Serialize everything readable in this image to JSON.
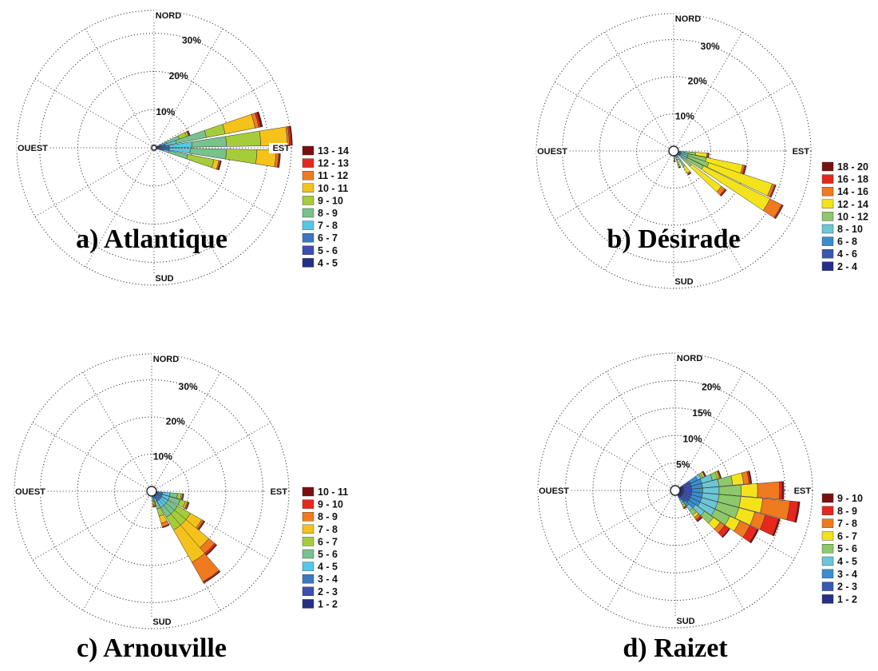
{
  "chart_data": [
    {
      "type": "windrose",
      "title": "a) Atlantique",
      "directions": [
        "NORD",
        "EST",
        "SUD",
        "OUEST"
      ],
      "ring_values": [
        10,
        20,
        30
      ],
      "ring_labels": [
        "10%",
        "20%",
        "30%"
      ],
      "rmax": 36,
      "legend": [
        "13 - 14",
        "12 - 13",
        "11 - 12",
        "10 - 11",
        "9 - 10",
        "8 - 9",
        "7 - 8",
        "6 - 7",
        "5 - 6",
        "4 - 5"
      ],
      "colors": [
        "#7a0f0f",
        "#e8271c",
        "#f07a1e",
        "#f4c21b",
        "#a5cd39",
        "#78c28c",
        "#55c7e8",
        "#3a77c4",
        "#3c4fb2",
        "#252f86"
      ],
      "sectors": [
        {
          "dir": 67.5,
          "cum": [
            0.5,
            1.0,
            2.0,
            3.5,
            7.0,
            9.0,
            9.5,
            9.7,
            9.8,
            10.0
          ]
        },
        {
          "dir": 75,
          "cum": [
            0.5,
            1.5,
            3.0,
            6.0,
            14.0,
            19.0,
            27.0,
            28.0,
            28.5,
            29.0
          ]
        },
        {
          "dir": 85,
          "cum": [
            0.5,
            1.5,
            4.0,
            10.0,
            19.0,
            28.0,
            35.0,
            35.5,
            36.0,
            36.3
          ]
        },
        {
          "dir": 95,
          "cum": [
            0.5,
            1.5,
            4.0,
            9.5,
            19.0,
            27.0,
            32.0,
            32.7,
            33.0,
            33.2
          ]
        },
        {
          "dir": 105,
          "cum": [
            0.5,
            1.0,
            2.5,
            4.0,
            9.0,
            16.0,
            17.3,
            17.6,
            17.8,
            18.0
          ]
        }
      ]
    },
    {
      "type": "windrose",
      "title": "b) Désirade",
      "directions": [
        "NORD",
        "EST",
        "SUD",
        "OUEST"
      ],
      "ring_values": [
        10,
        20,
        30
      ],
      "ring_labels": [
        "10%",
        "20%",
        "30%"
      ],
      "rmax": 37,
      "legend": [
        "18 - 20",
        "16 - 18",
        "14 - 16",
        "12 - 14",
        "10 - 12",
        "8 - 10",
        "6 - 8",
        "4 - 6",
        "2 - 4"
      ],
      "colors": [
        "#7a0f0f",
        "#e8271c",
        "#f07a1e",
        "#f4e31b",
        "#8dc86a",
        "#6cc6d6",
        "#3a8ed0",
        "#3a57b5",
        "#252f86"
      ],
      "sectors": [
        {
          "dir": 97,
          "cum": [
            0.5,
            1.0,
            2.0,
            3.0,
            6.0,
            9.0,
            9.3,
            9.5,
            9.6
          ]
        },
        {
          "dir": 105,
          "cum": [
            0.5,
            1.0,
            2.0,
            4.0,
            9.0,
            19.0,
            19.5,
            19.8,
            20.0
          ]
        },
        {
          "dir": 112,
          "cum": [
            0.5,
            1.0,
            2.0,
            4.0,
            10.0,
            28.0,
            28.7,
            29.0,
            29.1
          ]
        },
        {
          "dir": 120,
          "cum": [
            0.5,
            1.0,
            2.0,
            4.0,
            9.0,
            29.0,
            32.5,
            32.8,
            33.0
          ]
        },
        {
          "dir": 130,
          "cum": [
            0.5,
            1.0,
            2.0,
            3.0,
            6.0,
            16.0,
            17.2,
            17.5,
            17.7
          ]
        },
        {
          "dir": 145,
          "cum": [
            0.5,
            1.0,
            2.0,
            3.0,
            5.0,
            7.0,
            7.3,
            7.5,
            7.6
          ]
        },
        {
          "dir": 160,
          "cum": [
            0.5,
            1.0,
            1.5,
            2.5,
            4.0,
            4.5,
            4.6,
            4.7,
            4.8
          ]
        },
        {
          "dir": 175,
          "cum": [
            0.5,
            1.0,
            1.5,
            2.0,
            2.5,
            2.8,
            2.9,
            2.95,
            3.0
          ]
        }
      ]
    },
    {
      "type": "windrose",
      "title": "c) Arnouville",
      "directions": [
        "NORD",
        "EST",
        "SUD",
        "OUEST"
      ],
      "ring_values": [
        10,
        20,
        30
      ],
      "ring_labels": [
        "10%",
        "20%",
        "30%"
      ],
      "rmax": 37,
      "legend": [
        "10 - 11",
        "9 - 10",
        "8 - 9",
        "7 - 8",
        "6 - 7",
        "5 - 6",
        "4 - 5",
        "3 - 4",
        "2 - 3",
        "1 - 2"
      ],
      "colors": [
        "#7a0f0f",
        "#e8271c",
        "#f07a1e",
        "#f4c21b",
        "#a5cd39",
        "#78c28c",
        "#55c7e8",
        "#3a77c4",
        "#3c4fb2",
        "#252f86"
      ],
      "sectors": [
        {
          "dir": 100,
          "cum": [
            0.5,
            1.5,
            3.0,
            5.0,
            7.0,
            8.0,
            8.3,
            8.5,
            8.6,
            8.7
          ]
        },
        {
          "dir": 112,
          "cum": [
            0.5,
            1.5,
            3.0,
            5.0,
            8.0,
            9.5,
            10.0,
            10.3,
            10.5,
            10.6
          ]
        },
        {
          "dir": 125,
          "cum": [
            0.5,
            1.5,
            3.0,
            5.0,
            8.0,
            12.0,
            15.5,
            16.0,
            16.3,
            16.5
          ]
        },
        {
          "dir": 135,
          "cum": [
            0.5,
            1.5,
            3.0,
            5.0,
            8.0,
            12.0,
            20.0,
            22.0,
            22.5,
            22.8
          ]
        },
        {
          "dir": 145,
          "cum": [
            0.5,
            1.5,
            3.0,
            5.0,
            8.0,
            12.0,
            22.0,
            28.0,
            28.3,
            28.5
          ]
        },
        {
          "dir": 158,
          "cum": [
            0.5,
            1.0,
            2.0,
            3.0,
            5.0,
            7.0,
            9.0,
            10.0,
            10.2,
            10.3
          ]
        },
        {
          "dir": 170,
          "cum": [
            0.5,
            1.0,
            1.5,
            2.0,
            2.5,
            3.0,
            3.5,
            4.0,
            4.2,
            4.3
          ]
        }
      ]
    },
    {
      "type": "windrose",
      "title": "d) Raizet",
      "directions": [
        "NORD",
        "EST",
        "SUD",
        "OUEST"
      ],
      "ring_values": [
        5,
        10,
        15,
        20
      ],
      "ring_labels": [
        "5%",
        "10%",
        "15%",
        "20%"
      ],
      "rmax": 25,
      "legend": [
        "9 - 10",
        "8 - 9",
        "7 - 8",
        "6 - 7",
        "5 - 6",
        "4 - 5",
        "3 - 4",
        "2 - 3",
        "1 - 2"
      ],
      "colors": [
        "#7a0f0f",
        "#e8271c",
        "#f07a1e",
        "#f4e31b",
        "#8dc86a",
        "#6cc6d6",
        "#3a8ed0",
        "#3a57b5",
        "#252f86"
      ],
      "sectors": [
        {
          "dir": 60,
          "cum": [
            1.5,
            3.0,
            4.5,
            5.2,
            5.6,
            5.9,
            6.0,
            6.1,
            6.2
          ]
        },
        {
          "dir": 70,
          "cum": [
            1.5,
            3.0,
            5.0,
            7.0,
            8.0,
            8.3,
            8.5,
            8.6,
            8.7
          ]
        },
        {
          "dir": 80,
          "cum": [
            1.5,
            3.0,
            5.0,
            8.0,
            10.5,
            12.5,
            13.5,
            13.8,
            14.0
          ]
        },
        {
          "dir": 90,
          "cum": [
            1.5,
            3.0,
            5.0,
            8.0,
            12.0,
            15.0,
            19.0,
            19.5,
            19.8
          ]
        },
        {
          "dir": 100,
          "cum": [
            1.5,
            3.0,
            5.0,
            8.0,
            12.0,
            16.0,
            21.0,
            22.5,
            22.8
          ]
        },
        {
          "dir": 110,
          "cum": [
            1.5,
            3.0,
            5.0,
            8.0,
            12.0,
            15.0,
            17.0,
            19.5,
            19.8
          ]
        },
        {
          "dir": 120,
          "cum": [
            1.5,
            3.0,
            5.0,
            8.0,
            11.0,
            13.0,
            15.0,
            16.5,
            16.8
          ]
        },
        {
          "dir": 130,
          "cum": [
            1.5,
            3.0,
            4.5,
            6.5,
            8.5,
            10.0,
            11.0,
            12.0,
            12.2
          ]
        },
        {
          "dir": 140,
          "cum": [
            1.5,
            2.5,
            3.5,
            4.5,
            5.5,
            6.0,
            6.5,
            6.8,
            7.0
          ]
        },
        {
          "dir": 150,
          "cum": [
            1.0,
            1.5,
            2.0,
            2.5,
            3.0,
            3.3,
            3.5,
            3.6,
            3.7
          ]
        }
      ]
    }
  ]
}
